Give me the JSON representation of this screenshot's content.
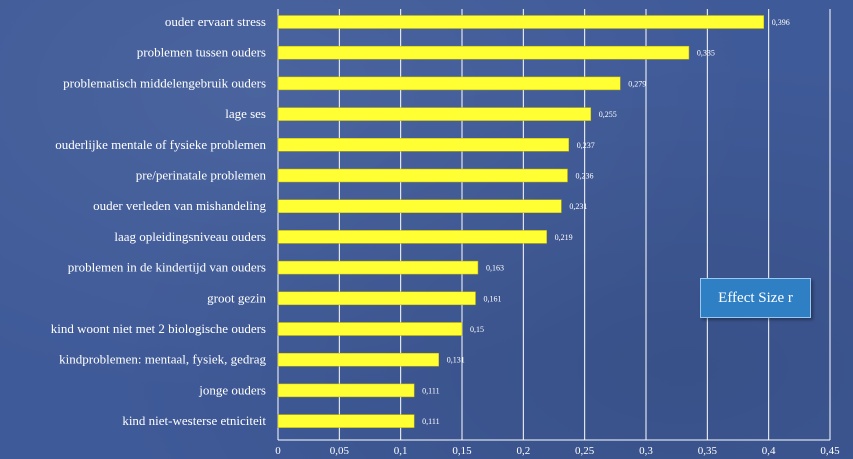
{
  "chart_data": {
    "type": "bar",
    "orientation": "horizontal",
    "categories": [
      "ouder ervaart stress",
      "problemen tussen ouders",
      "problematisch middelengebruik ouders",
      "lage ses",
      "ouderlijke mentale of fysieke problemen",
      "pre/perinatale problemen",
      "ouder verleden van mishandeling",
      "laag opleidingsniveau ouders",
      "problemen in de kindertijd van ouders",
      "groot gezin",
      "kind woont niet met 2 biologische ouders",
      "kindproblemen: mentaal, fysiek, gedrag",
      "jonge ouders",
      "kind niet-westerse etniciteit"
    ],
    "values": [
      0.396,
      0.335,
      0.279,
      0.255,
      0.237,
      0.236,
      0.231,
      0.219,
      0.163,
      0.161,
      0.15,
      0.131,
      0.111,
      0.111
    ],
    "value_labels": [
      "0,396",
      "0,335",
      "0,279",
      "0,255",
      "0,237",
      "0,236",
      "0,231",
      "0,219",
      "0,163",
      "0,161",
      "0,15",
      "0,131",
      "0,111",
      "0,111"
    ],
    "xlim": [
      0,
      0.45
    ],
    "xticks": [
      0,
      0.05,
      0.1,
      0.15,
      0.2,
      0.25,
      0.3,
      0.35,
      0.4,
      0.45
    ],
    "xtick_labels": [
      "0",
      "0,05",
      "0,1",
      "0,15",
      "0,2",
      "0,25",
      "0,3",
      "0,35",
      "0,4",
      "0,45"
    ],
    "legend": "Effect Size r",
    "legend_position": "right",
    "grid": true,
    "bar_color": "#ffff33",
    "grid_color": "#ffffff"
  }
}
